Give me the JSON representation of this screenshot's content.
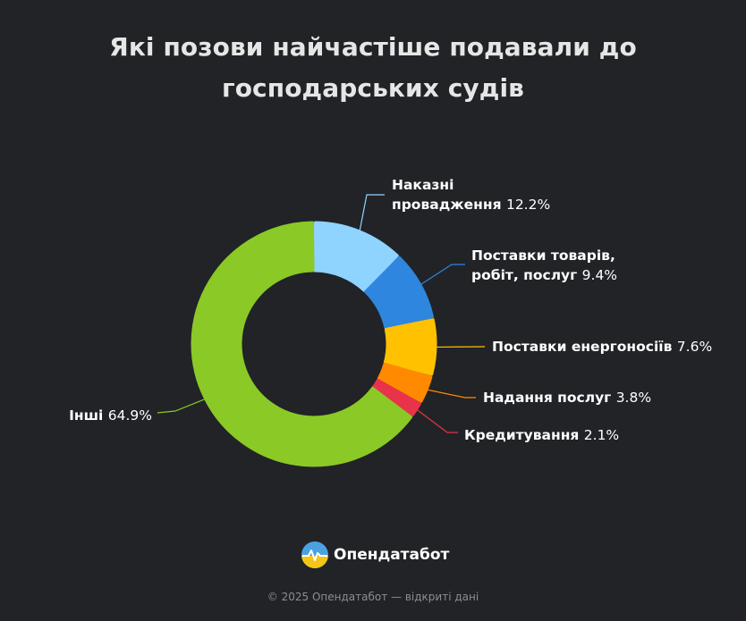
{
  "header": {
    "title_line1": "Які позови найчастіше подавали до",
    "title_line2": "господарських судів"
  },
  "chart_data": {
    "type": "pie",
    "subtype": "donut",
    "categories": [
      "Наказні провадження",
      "Поставки товарів, робіт, послуг",
      "Поставки енергоносіїв",
      "Надання послуг",
      "Кредитування",
      "Інші"
    ],
    "values": [
      12.2,
      9.4,
      7.6,
      3.8,
      2.1,
      64.9
    ],
    "unit": "%",
    "colors": [
      "#8fd3ff",
      "#2e86de",
      "#ffc100",
      "#ff8a00",
      "#e8334a",
      "#8bc926"
    ],
    "labels": [
      {
        "lines": [
          "Наказні",
          "провадження"
        ],
        "value_text": "12.2%"
      },
      {
        "lines": [
          "Поставки товарів,",
          "робіт, послуг"
        ],
        "value_text": "9.4%"
      },
      {
        "lines": [
          "Поставки енергоносіїв"
        ],
        "value_text": "7.6%"
      },
      {
        "lines": [
          "Надання послуг"
        ],
        "value_text": "3.8%"
      },
      {
        "lines": [
          "Кредитування"
        ],
        "value_text": "2.1%"
      },
      {
        "lines": [
          "Інші"
        ],
        "value_text": "64.9%"
      }
    ],
    "legend": "none"
  },
  "brand": {
    "name": "Опендатабот",
    "logo_icon": "sun-over-water-logo"
  },
  "footer": {
    "text": "© 2025 Опендатабот — відкриті дані"
  }
}
